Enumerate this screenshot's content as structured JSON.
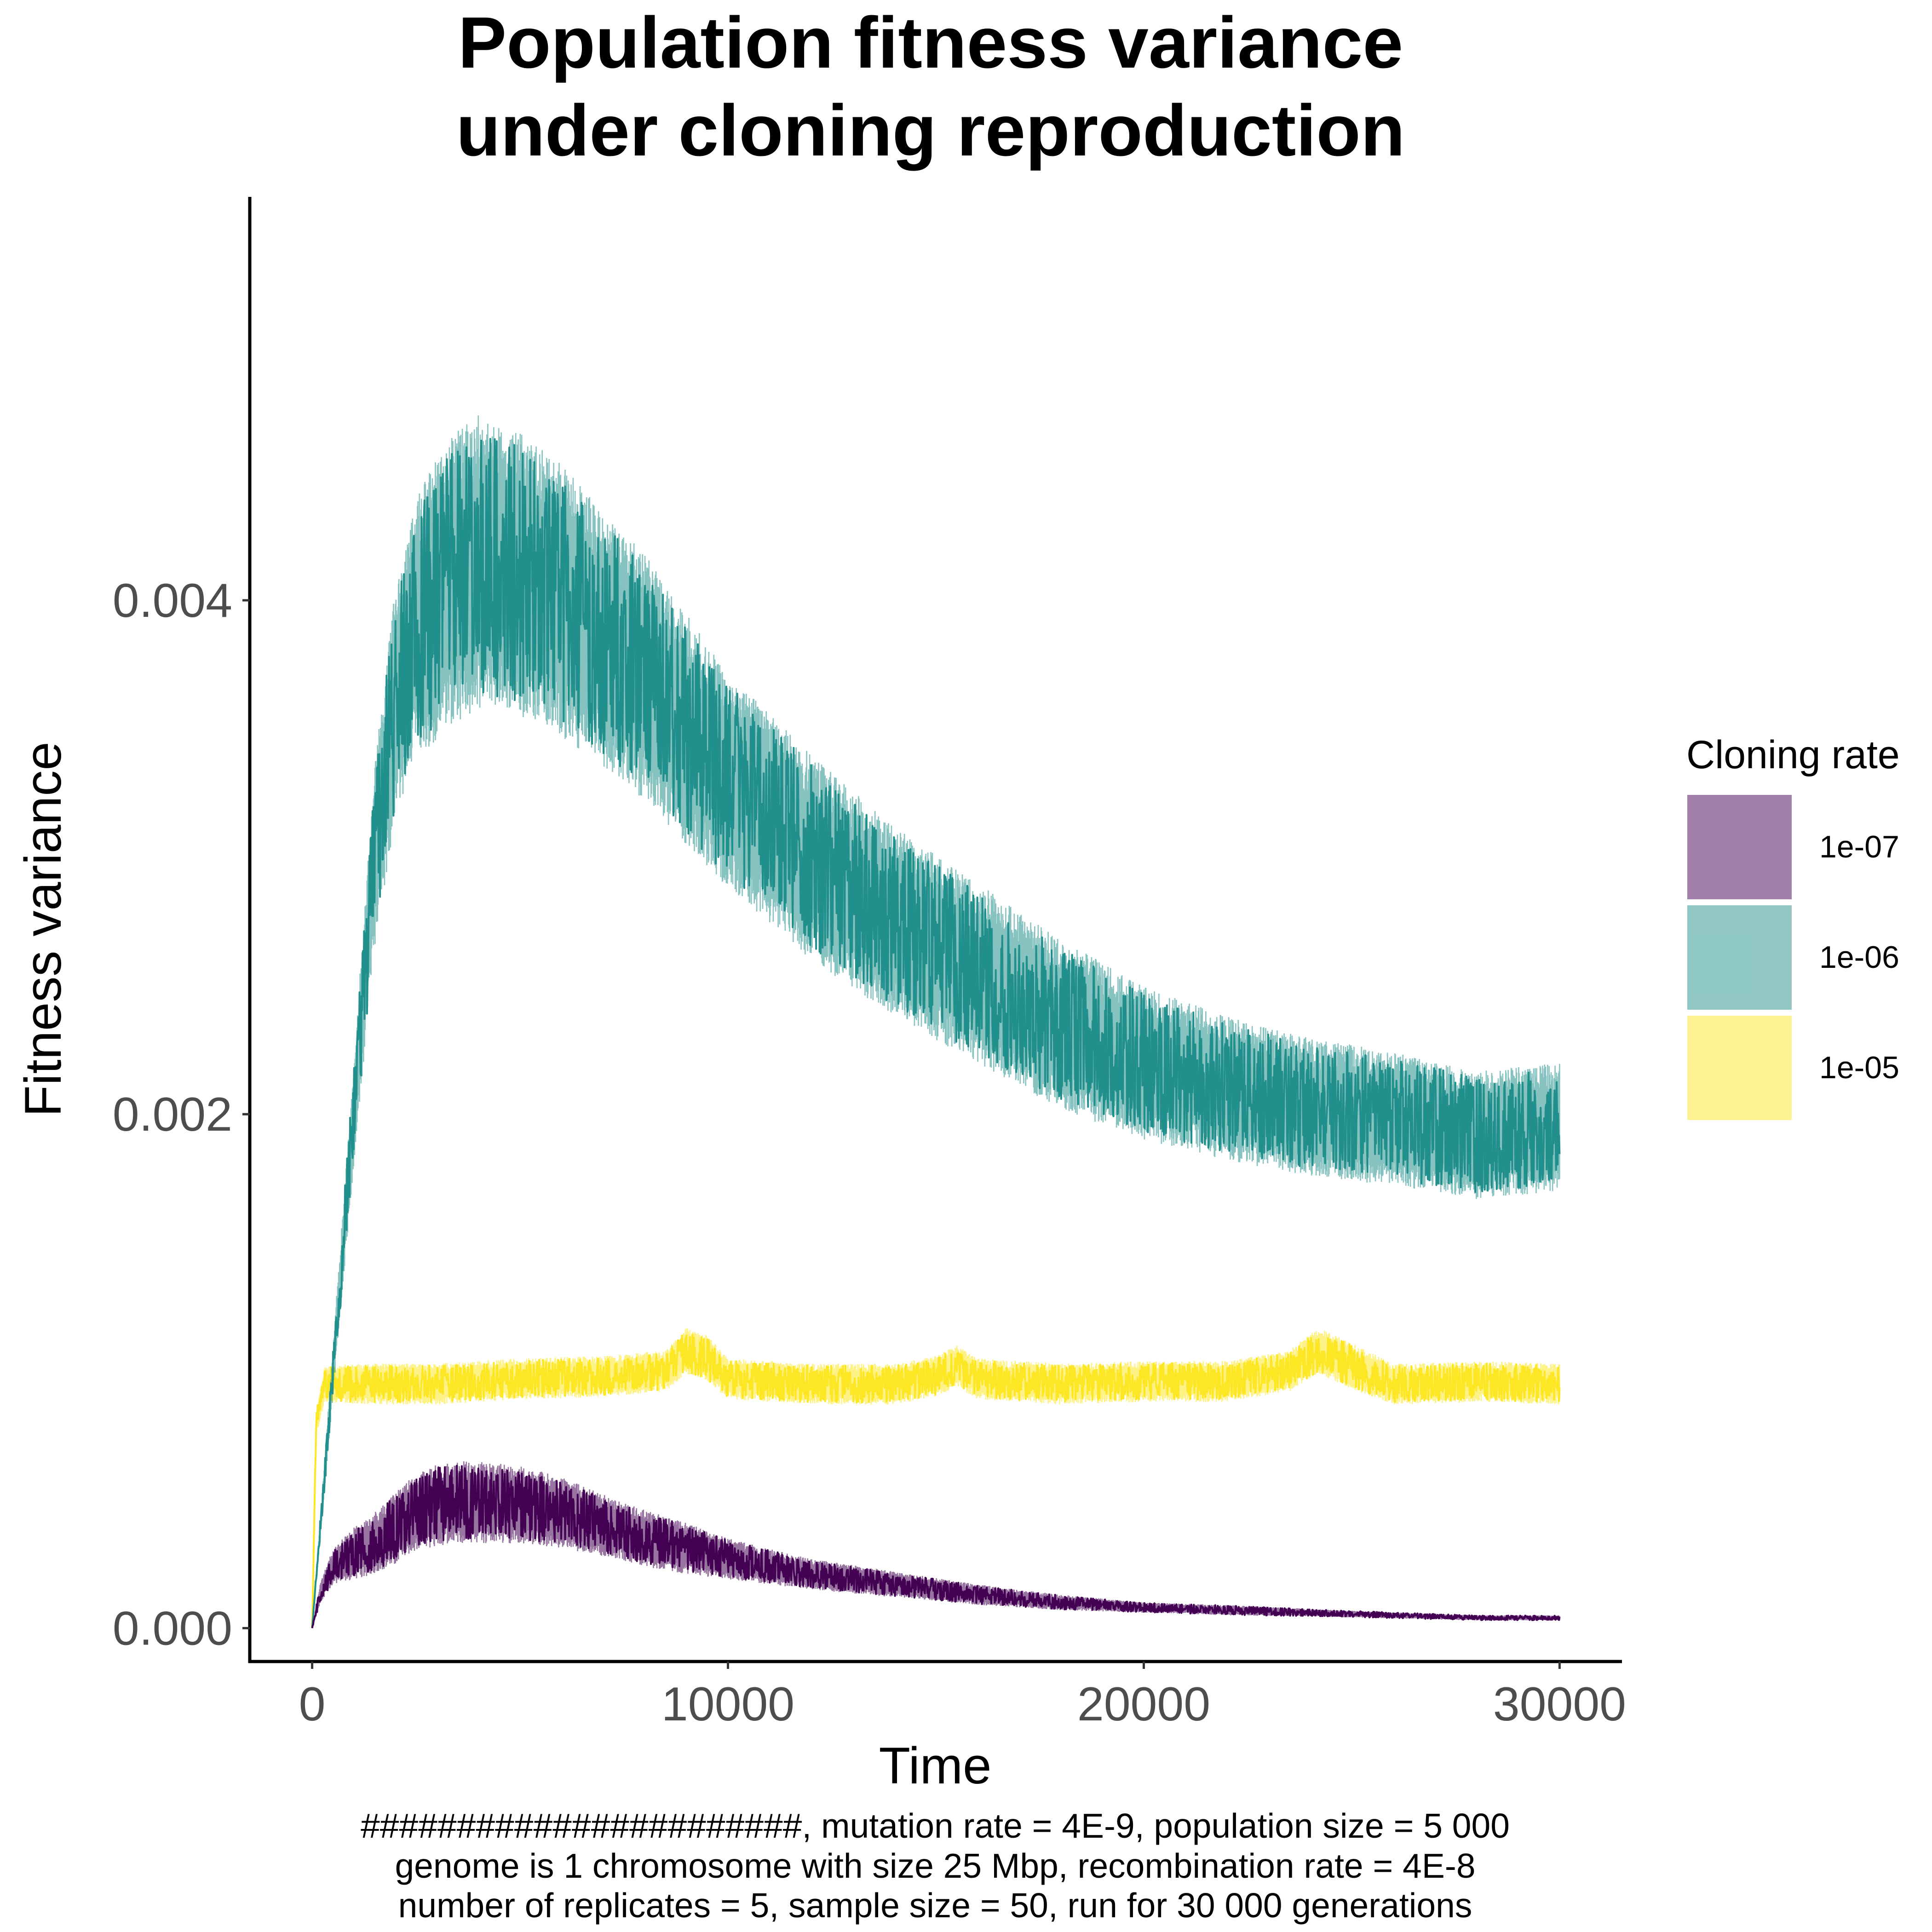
{
  "title_lines": [
    "Population fitness variance",
    "under cloning reproduction"
  ],
  "caption_lines": [
    "#######################, mutation rate = 4E-9, population size = 5 000",
    "genome is 1 chromosome with size 25 Mbp, recombination rate = 4E-8",
    "number of replicates = 5, sample size = 50, run for 30 000 generations"
  ],
  "chart_data": {
    "type": "line",
    "title": "Population fitness variance\nunder cloning reproduction",
    "xlabel": "Time",
    "ylabel": "Fitness variance",
    "xlim": [
      -1500,
      31500
    ],
    "ylim": [
      -0.00013,
      0.00557
    ],
    "x_ticks": [
      0,
      10000,
      20000,
      30000
    ],
    "x_tick_labels": [
      "0",
      "10000",
      "20000",
      "30000"
    ],
    "y_ticks": [
      0.0,
      0.002,
      0.004
    ],
    "y_tick_labels": [
      "0.000",
      "0.002",
      "0.004"
    ],
    "grid": false,
    "legend": {
      "title": "Cloning rate",
      "placement": "right"
    },
    "series": [
      {
        "name": "1e-07",
        "color": "#440154",
        "x": [
          0,
          200,
          500,
          1000,
          1500,
          2000,
          2500,
          3000,
          3500,
          4000,
          5000,
          6000,
          7000,
          8000,
          9000,
          10000,
          12000,
          14000,
          16000,
          18000,
          20000,
          22000,
          24000,
          26000,
          28000,
          30000
        ],
        "mean": [
          0.0,
          0.00014,
          0.00024,
          0.00029,
          0.00033,
          0.00039,
          0.00045,
          0.00048,
          0.00049,
          0.00049,
          0.00048,
          0.00045,
          0.0004,
          0.00035,
          0.00031,
          0.00027,
          0.00021,
          0.00017,
          0.00013,
          0.0001,
          8e-05,
          7e-05,
          6e-05,
          5e-05,
          4e-05,
          4e-05
        ],
        "spread": [
          0.0,
          4e-05,
          7e-05,
          0.0001,
          0.00012,
          0.00014,
          0.00015,
          0.00016,
          0.00016,
          0.00016,
          0.00015,
          0.00014,
          0.00012,
          0.00011,
          0.0001,
          8e-05,
          6e-05,
          5e-05,
          4e-05,
          3e-05,
          2e-05,
          2e-05,
          1.5e-05,
          1.2e-05,
          1e-05,
          1e-05
        ]
      },
      {
        "name": "1e-06",
        "color": "#21908C",
        "x": [
          0,
          500,
          1000,
          1500,
          2000,
          2500,
          3000,
          3500,
          4000,
          5000,
          6000,
          7000,
          8000,
          9000,
          10000,
          12000,
          14000,
          16000,
          18000,
          20000,
          22000,
          24000,
          26000,
          28000,
          30000
        ],
        "mean": [
          0.0,
          0.001,
          0.002,
          0.003,
          0.0036,
          0.0039,
          0.004,
          0.0041,
          0.00415,
          0.0041,
          0.004,
          0.00385,
          0.0037,
          0.0035,
          0.0033,
          0.003,
          0.00275,
          0.00255,
          0.00235,
          0.0022,
          0.0021,
          0.00203,
          0.00198,
          0.00192,
          0.00195
        ],
        "spread": [
          0.0,
          0.0001,
          0.0002,
          0.00035,
          0.00045,
          0.0005,
          0.00055,
          0.00057,
          0.00057,
          0.00055,
          0.00053,
          0.0005,
          0.00048,
          0.00045,
          0.00042,
          0.0004,
          0.00037,
          0.00035,
          0.00033,
          0.0003,
          0.00028,
          0.00027,
          0.00026,
          0.00025,
          0.00025
        ]
      },
      {
        "name": "1e-05",
        "color": "#FDE725",
        "x": [
          0,
          100,
          300,
          1000,
          3000,
          5000,
          7000,
          8500,
          9000,
          9500,
          10000,
          12000,
          14000,
          15000,
          15500,
          16000,
          18000,
          20000,
          22000,
          23500,
          24200,
          25000,
          26000,
          28000,
          30000
        ],
        "mean": [
          0.0,
          0.0008,
          0.00095,
          0.00095,
          0.00095,
          0.00097,
          0.00098,
          0.001,
          0.00108,
          0.00105,
          0.00097,
          0.00095,
          0.00095,
          0.00098,
          0.00102,
          0.00097,
          0.00095,
          0.00096,
          0.00096,
          0.001,
          0.00108,
          0.00102,
          0.00095,
          0.00096,
          0.00095
        ],
        "spread": [
          0.0,
          5e-05,
          7e-05,
          8e-05,
          8e-05,
          8e-05,
          8e-05,
          8e-05,
          9e-05,
          9e-05,
          8e-05,
          8e-05,
          8e-05,
          8e-05,
          8e-05,
          8e-05,
          8e-05,
          8e-05,
          8e-05,
          8e-05,
          9e-05,
          9e-05,
          8e-05,
          8e-05,
          8e-05
        ]
      }
    ]
  }
}
